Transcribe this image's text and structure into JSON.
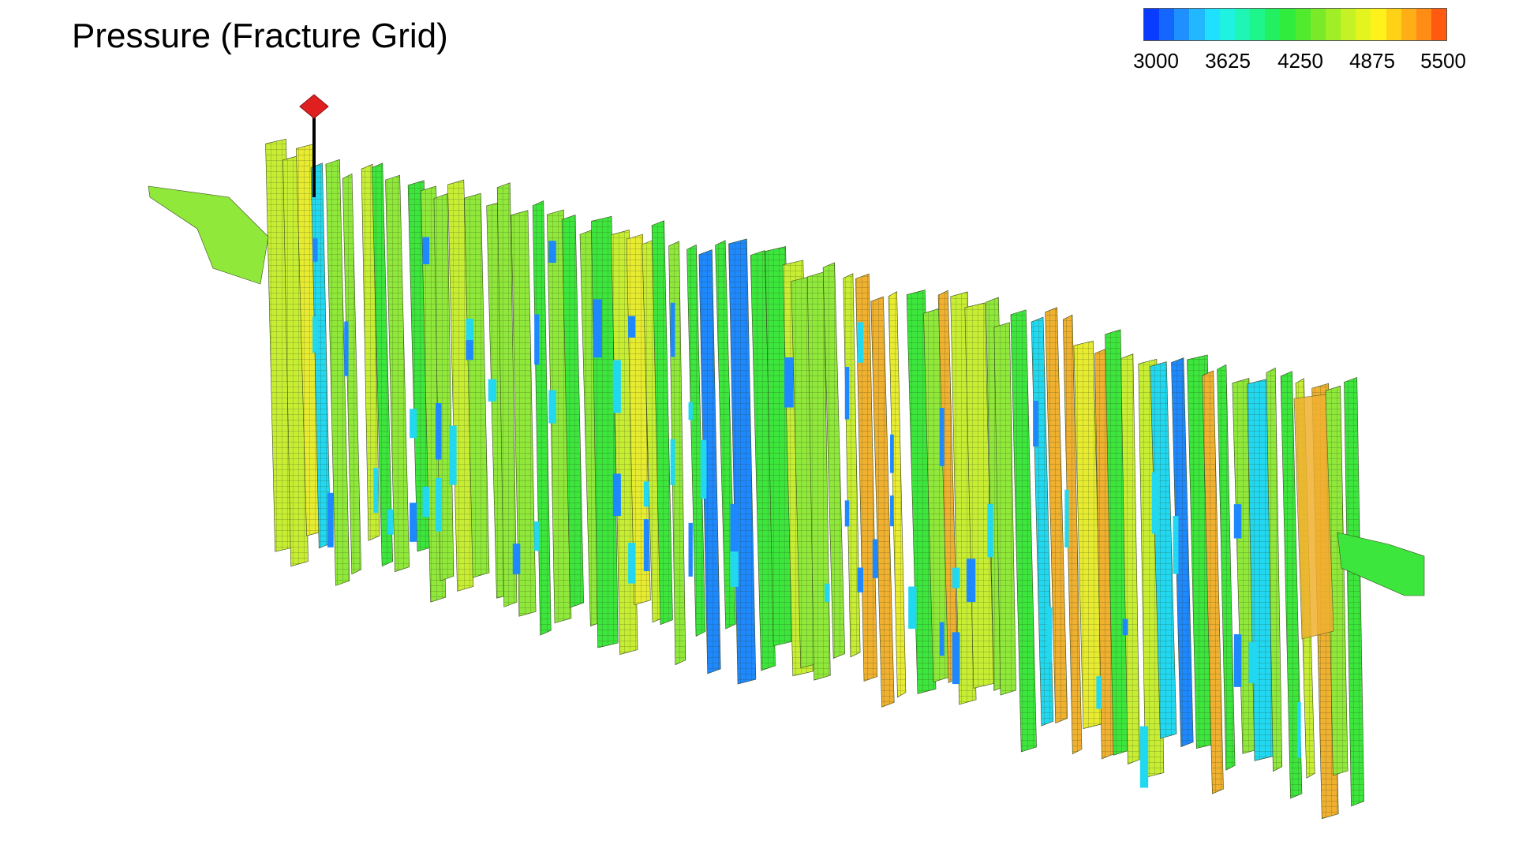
{
  "title": "Pressure (Fracture Grid)",
  "legend": {
    "min": 3000,
    "max": 5500,
    "tick_labels": [
      "3000",
      "3625",
      "4250",
      "4875",
      "5500"
    ],
    "color_stops": [
      "#0a3cff",
      "#1466ff",
      "#1e90ff",
      "#22b8ff",
      "#1fe0ff",
      "#1ff2e0",
      "#1ff5b4",
      "#1ef58a",
      "#22f060",
      "#30ec3c",
      "#52ea2c",
      "#78ea28",
      "#a0ee26",
      "#c4f224",
      "#e4f41e",
      "#fff21a",
      "#ffd218",
      "#ffae16",
      "#ff8c14",
      "#ff5a10"
    ]
  },
  "well_marker": {
    "color": "#e02020",
    "stem_color": "#000000"
  },
  "palette": {
    "grid_line": "#3a4a20",
    "cell_colors": {
      "low_blue": "#1e88ff",
      "cyan": "#22d8f0",
      "green": "#3ce63c",
      "light_green": "#8fe83a",
      "yellow_green": "#c8ee34",
      "yellow": "#e8ec30",
      "orange": "#f0b030",
      "red_orange": "#ec7a26"
    }
  }
}
